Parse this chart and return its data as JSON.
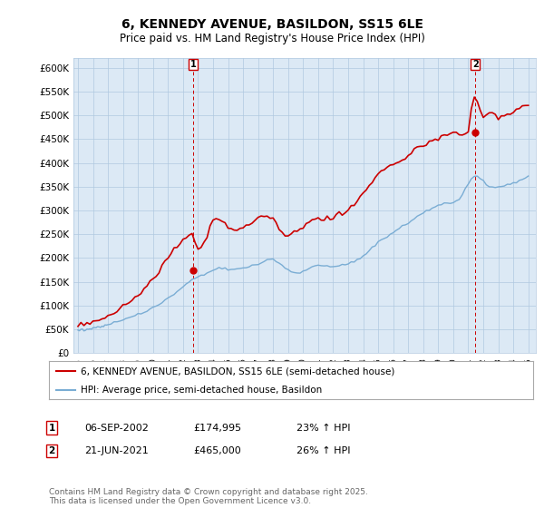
{
  "title": "6, KENNEDY AVENUE, BASILDON, SS15 6LE",
  "subtitle": "Price paid vs. HM Land Registry's House Price Index (HPI)",
  "ylim": [
    0,
    620000
  ],
  "yticks": [
    0,
    50000,
    100000,
    150000,
    200000,
    250000,
    300000,
    350000,
    400000,
    450000,
    500000,
    550000,
    600000
  ],
  "ytick_labels": [
    "£0",
    "£50K",
    "£100K",
    "£150K",
    "£200K",
    "£250K",
    "£300K",
    "£350K",
    "£400K",
    "£450K",
    "£500K",
    "£550K",
    "£600K"
  ],
  "line1_color": "#cc0000",
  "line2_color": "#7aadd4",
  "annotation1": {
    "label": "1",
    "date": "06-SEP-2002",
    "price": "£174,995",
    "hpi": "23% ↑ HPI"
  },
  "annotation2": {
    "label": "2",
    "date": "21-JUN-2021",
    "price": "£465,000",
    "hpi": "26% ↑ HPI"
  },
  "legend1": "6, KENNEDY AVENUE, BASILDON, SS15 6LE (semi-detached house)",
  "legend2": "HPI: Average price, semi-detached house, Basildon",
  "footer": "Contains HM Land Registry data © Crown copyright and database right 2025.\nThis data is licensed under the Open Government Licence v3.0.",
  "background_color": "#ffffff",
  "plot_bg_color": "#dce9f5",
  "grid_color": "#b0c8e0",
  "marker1_year": 2002.67,
  "marker1_value": 174995,
  "marker2_year": 2021.47,
  "marker2_value": 465000,
  "hpi_years": [
    1995.0,
    1995.1,
    1995.2,
    1995.3,
    1995.4,
    1995.5,
    1995.6,
    1995.7,
    1995.8,
    1995.9,
    1996.0,
    1996.1,
    1996.2,
    1996.3,
    1996.4,
    1996.5,
    1996.6,
    1996.7,
    1996.8,
    1996.9,
    1997.0,
    1997.2,
    1997.4,
    1997.6,
    1997.8,
    1998.0,
    1998.2,
    1998.4,
    1998.6,
    1998.8,
    1999.0,
    1999.2,
    1999.4,
    1999.6,
    1999.8,
    2000.0,
    2000.2,
    2000.4,
    2000.6,
    2000.8,
    2001.0,
    2001.2,
    2001.4,
    2001.6,
    2001.8,
    2002.0,
    2002.2,
    2002.4,
    2002.6,
    2002.8,
    2003.0,
    2003.2,
    2003.4,
    2003.6,
    2003.8,
    2004.0,
    2004.2,
    2004.4,
    2004.6,
    2004.8,
    2005.0,
    2005.2,
    2005.4,
    2005.6,
    2005.8,
    2006.0,
    2006.2,
    2006.4,
    2006.6,
    2006.8,
    2007.0,
    2007.2,
    2007.4,
    2007.6,
    2007.8,
    2008.0,
    2008.2,
    2008.4,
    2008.6,
    2008.8,
    2009.0,
    2009.2,
    2009.4,
    2009.6,
    2009.8,
    2010.0,
    2010.2,
    2010.4,
    2010.6,
    2010.8,
    2011.0,
    2011.2,
    2011.4,
    2011.6,
    2011.8,
    2012.0,
    2012.2,
    2012.4,
    2012.6,
    2012.8,
    2013.0,
    2013.2,
    2013.4,
    2013.6,
    2013.8,
    2014.0,
    2014.2,
    2014.4,
    2014.6,
    2014.8,
    2015.0,
    2015.2,
    2015.4,
    2015.6,
    2015.8,
    2016.0,
    2016.2,
    2016.4,
    2016.6,
    2016.8,
    2017.0,
    2017.2,
    2017.4,
    2017.6,
    2017.8,
    2018.0,
    2018.2,
    2018.4,
    2018.6,
    2018.8,
    2019.0,
    2019.2,
    2019.4,
    2019.6,
    2019.8,
    2020.0,
    2020.2,
    2020.4,
    2020.6,
    2020.8,
    2021.0,
    2021.2,
    2021.4,
    2021.6,
    2021.8,
    2022.0,
    2022.2,
    2022.4,
    2022.6,
    2022.8,
    2023.0,
    2023.2,
    2023.4,
    2023.6,
    2023.8,
    2024.0,
    2024.2,
    2024.4,
    2024.6,
    2024.8,
    2025.0
  ],
  "hpi_values": [
    48000,
    48500,
    49000,
    49200,
    49500,
    49800,
    50200,
    50500,
    51000,
    51500,
    52000,
    52500,
    53200,
    53800,
    54500,
    55200,
    56000,
    57000,
    58000,
    59000,
    60000,
    62000,
    64000,
    66000,
    68000,
    70000,
    72000,
    74000,
    76000,
    78000,
    80000,
    83000,
    86000,
    89000,
    92000,
    95000,
    99000,
    103000,
    107000,
    111000,
    115000,
    119000,
    124000,
    129000,
    134000,
    139000,
    144000,
    149000,
    154000,
    157000,
    160000,
    163000,
    166000,
    169000,
    172000,
    175000,
    177000,
    178000,
    178500,
    178000,
    177000,
    176500,
    176000,
    176500,
    177000,
    178000,
    180000,
    182000,
    184000,
    186000,
    188000,
    191000,
    194000,
    196000,
    197000,
    197000,
    193000,
    189000,
    184000,
    179000,
    175000,
    172000,
    170000,
    169000,
    170000,
    172000,
    175000,
    178000,
    181000,
    183000,
    184000,
    184000,
    184000,
    184000,
    184000,
    184000,
    184500,
    185000,
    186000,
    187000,
    188000,
    190000,
    192000,
    196000,
    200000,
    205000,
    210000,
    216000,
    222000,
    228000,
    234000,
    238000,
    242000,
    246000,
    250000,
    254000,
    258000,
    262000,
    266000,
    270000,
    274000,
    278000,
    282000,
    286000,
    290000,
    294000,
    298000,
    302000,
    306000,
    309000,
    312000,
    314000,
    315000,
    316000,
    317000,
    318000,
    320000,
    322000,
    330000,
    342000,
    355000,
    368000,
    375000,
    372000,
    368000,
    364000,
    355000,
    350000,
    348000,
    348000,
    350000,
    352000,
    354000,
    356000,
    355000,
    356000,
    358000,
    362000,
    366000,
    370000,
    374000
  ],
  "price_years": [
    1995.0,
    1995.2,
    1995.4,
    1995.6,
    1995.8,
    1996.0,
    1996.2,
    1996.4,
    1996.6,
    1996.8,
    1997.0,
    1997.2,
    1997.4,
    1997.6,
    1997.8,
    1998.0,
    1998.2,
    1998.4,
    1998.6,
    1998.8,
    1999.0,
    1999.2,
    1999.4,
    1999.6,
    1999.8,
    2000.0,
    2000.2,
    2000.4,
    2000.6,
    2000.8,
    2001.0,
    2001.2,
    2001.4,
    2001.6,
    2001.8,
    2002.0,
    2002.2,
    2002.4,
    2002.6,
    2002.8,
    2003.0,
    2003.2,
    2003.4,
    2003.6,
    2003.8,
    2004.0,
    2004.2,
    2004.4,
    2004.6,
    2004.8,
    2005.0,
    2005.2,
    2005.4,
    2005.6,
    2005.8,
    2006.0,
    2006.2,
    2006.4,
    2006.6,
    2006.8,
    2007.0,
    2007.2,
    2007.4,
    2007.6,
    2007.8,
    2008.0,
    2008.2,
    2008.4,
    2008.6,
    2008.8,
    2009.0,
    2009.2,
    2009.4,
    2009.6,
    2009.8,
    2010.0,
    2010.2,
    2010.4,
    2010.6,
    2010.8,
    2011.0,
    2011.2,
    2011.4,
    2011.6,
    2011.8,
    2012.0,
    2012.2,
    2012.4,
    2012.6,
    2012.8,
    2013.0,
    2013.2,
    2013.4,
    2013.6,
    2013.8,
    2014.0,
    2014.2,
    2014.4,
    2014.6,
    2014.8,
    2015.0,
    2015.2,
    2015.4,
    2015.6,
    2015.8,
    2016.0,
    2016.2,
    2016.4,
    2016.6,
    2016.8,
    2017.0,
    2017.2,
    2017.4,
    2017.6,
    2017.8,
    2018.0,
    2018.2,
    2018.4,
    2018.6,
    2018.8,
    2019.0,
    2019.2,
    2019.4,
    2019.6,
    2019.8,
    2020.0,
    2020.2,
    2020.4,
    2020.6,
    2020.8,
    2021.0,
    2021.2,
    2021.4,
    2021.6,
    2021.8,
    2022.0,
    2022.2,
    2022.4,
    2022.6,
    2022.8,
    2023.0,
    2023.2,
    2023.4,
    2023.6,
    2023.8,
    2024.0,
    2024.2,
    2024.4,
    2024.6,
    2024.8,
    2025.0
  ],
  "price_values": [
    58000,
    59000,
    60000,
    62000,
    63000,
    65000,
    67000,
    69000,
    72000,
    75000,
    78000,
    82000,
    86000,
    90000,
    94000,
    98000,
    102000,
    106000,
    110000,
    115000,
    120000,
    126000,
    133000,
    140000,
    148000,
    156000,
    164000,
    172000,
    181000,
    190000,
    200000,
    210000,
    218000,
    225000,
    232000,
    238000,
    243000,
    248000,
    252000,
    232000,
    215000,
    222000,
    232000,
    248000,
    268000,
    282000,
    286000,
    283000,
    278000,
    272000,
    266000,
    262000,
    260000,
    259000,
    260000,
    262000,
    266000,
    270000,
    275000,
    280000,
    285000,
    288000,
    290000,
    288000,
    283000,
    278000,
    270000,
    262000,
    255000,
    250000,
    248000,
    250000,
    254000,
    258000,
    263000,
    268000,
    273000,
    278000,
    282000,
    284000,
    285000,
    284000,
    283000,
    283000,
    284000,
    285000,
    287000,
    290000,
    293000,
    296000,
    300000,
    306000,
    313000,
    320000,
    328000,
    336000,
    344000,
    353000,
    362000,
    370000,
    378000,
    383000,
    387000,
    390000,
    393000,
    396000,
    399000,
    402000,
    406000,
    410000,
    415000,
    420000,
    425000,
    430000,
    434000,
    437000,
    440000,
    443000,
    446000,
    449000,
    452000,
    455000,
    458000,
    461000,
    463000,
    464000,
    464500,
    460000,
    459000,
    462000,
    465000,
    510000,
    545000,
    530000,
    510000,
    495000,
    502000,
    510000,
    505000,
    498000,
    495000,
    497000,
    500000,
    503000,
    505000,
    507000,
    510000,
    513000,
    516000,
    518000,
    520000
  ]
}
